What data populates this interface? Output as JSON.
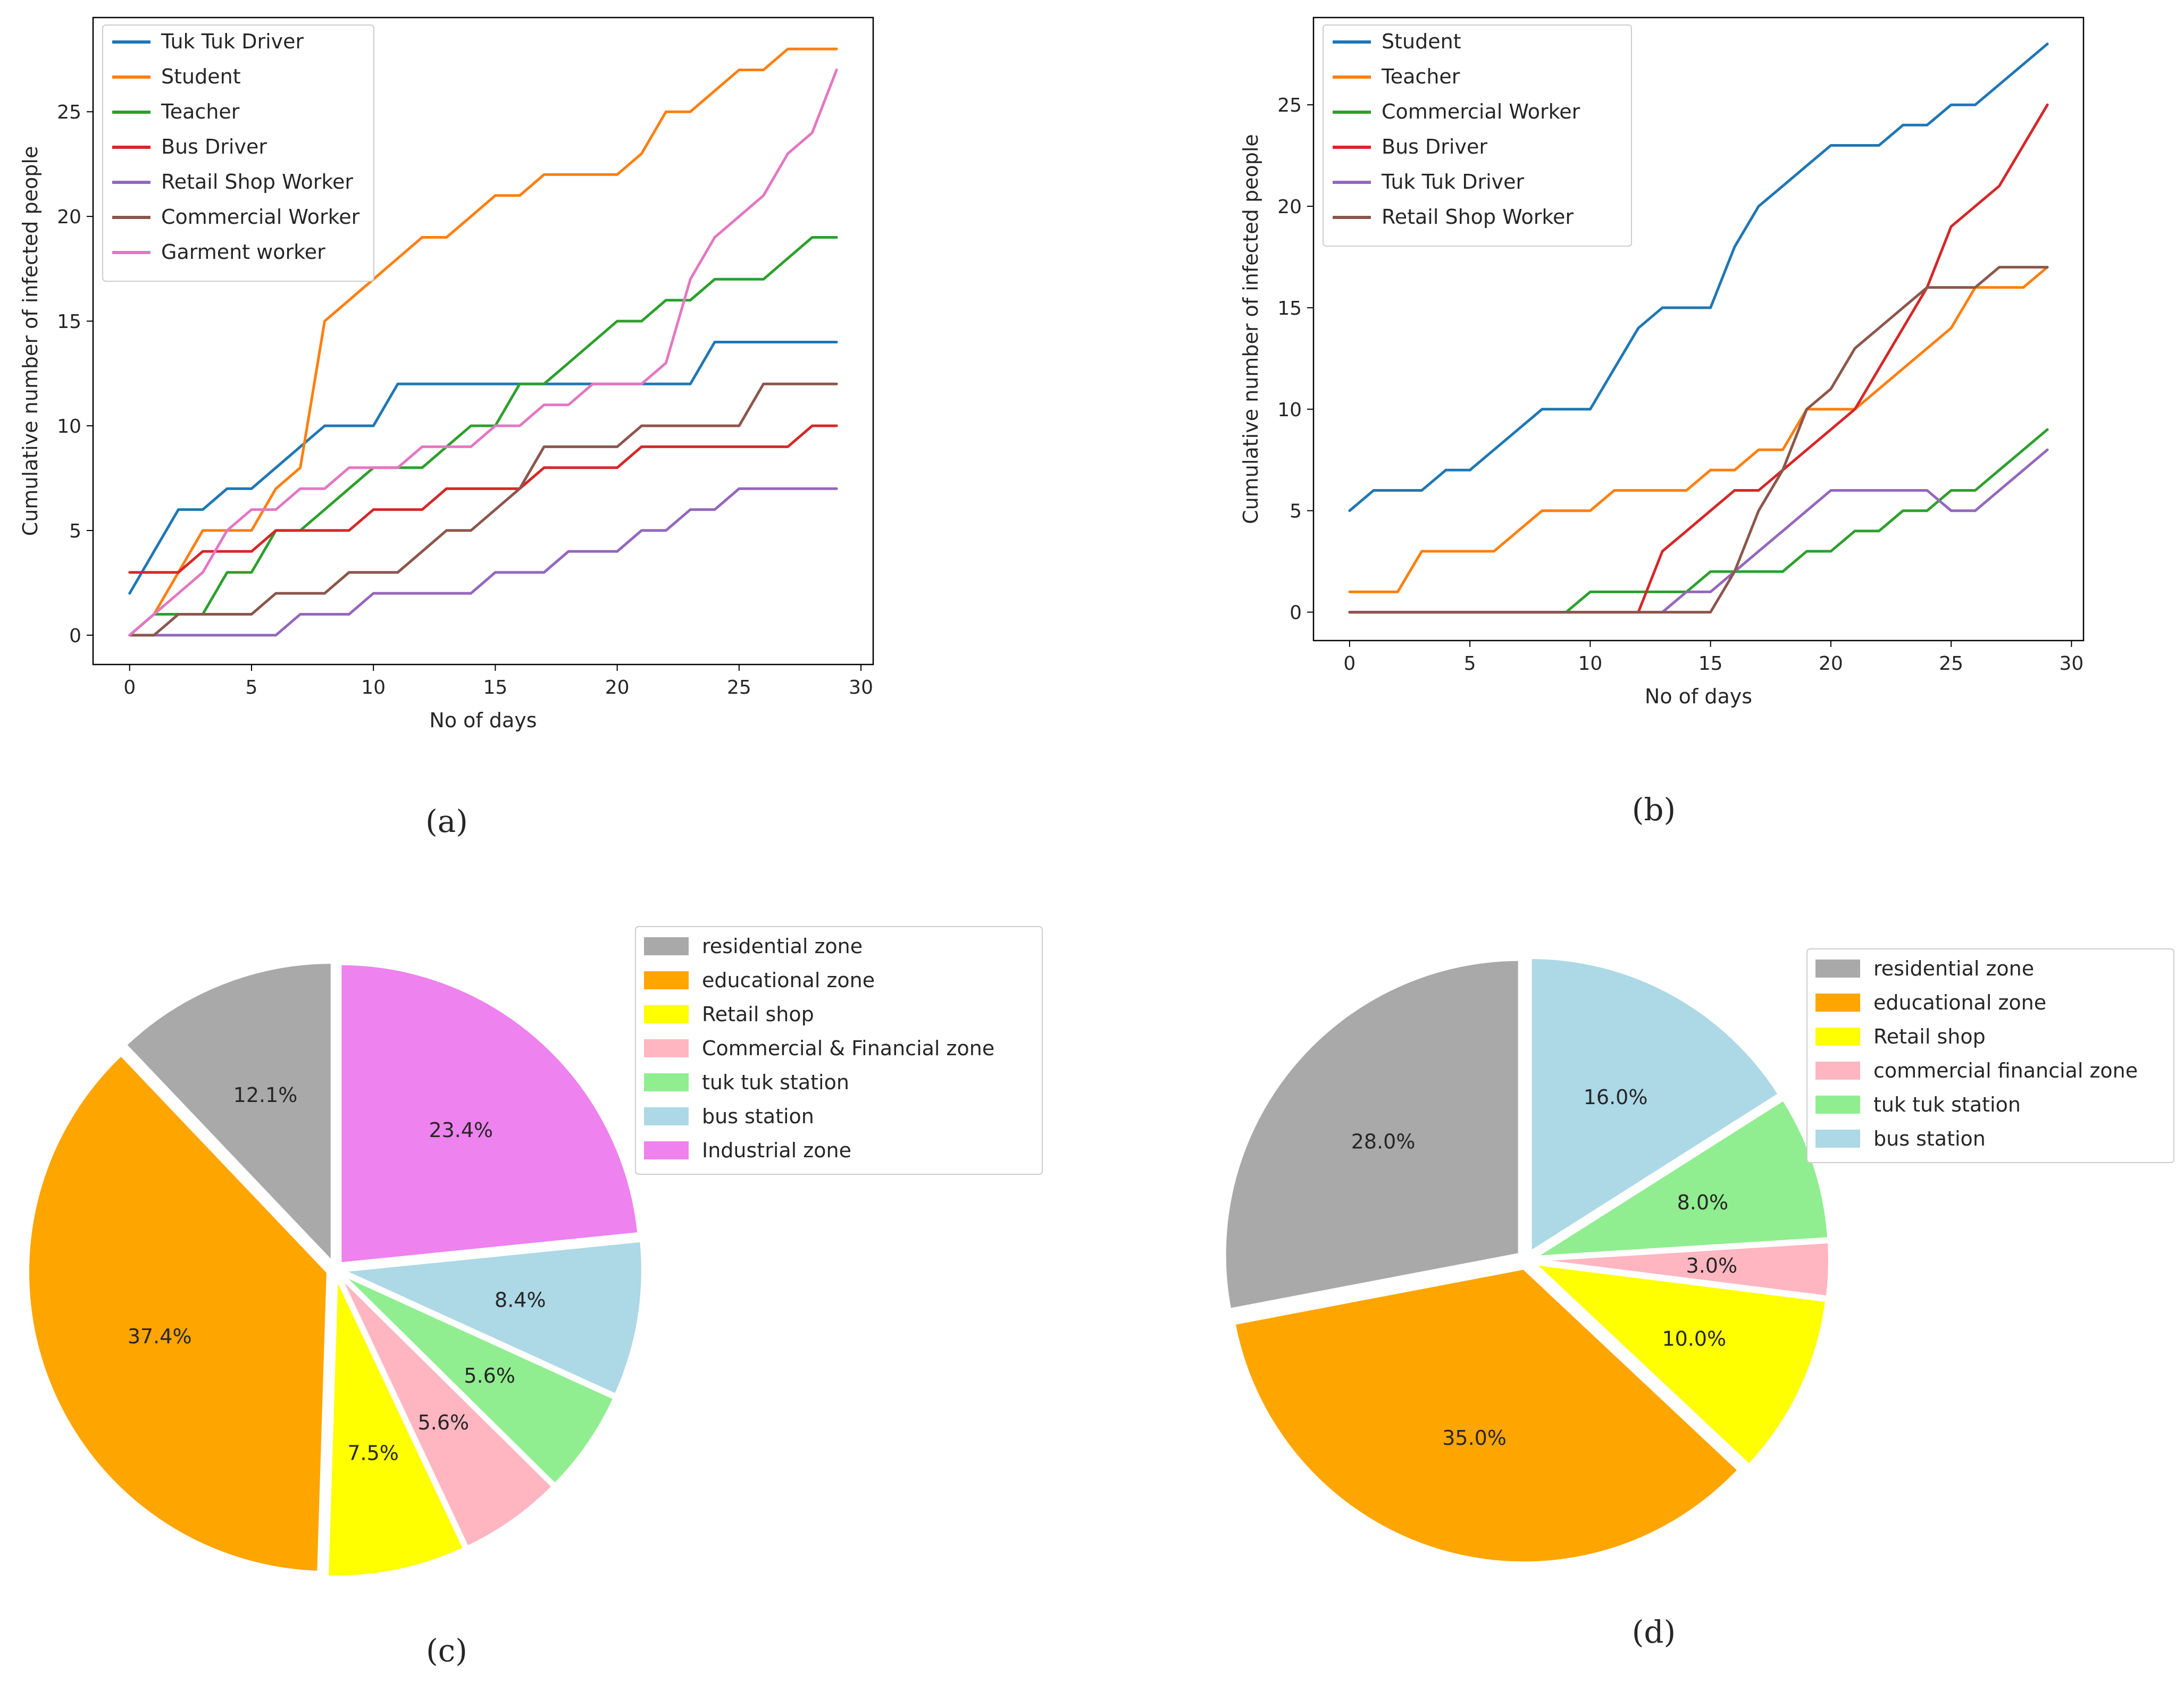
{
  "chart_data": [
    {
      "id": "a",
      "type": "line",
      "caption": "(a)",
      "caption_letter": "a",
      "xlabel": "No of days",
      "ylabel": "Cumulative number of infected people",
      "xlim": [
        -1.5,
        30.5
      ],
      "ylim": [
        -1.4,
        29.5
      ],
      "xticks": [
        0,
        5,
        10,
        15,
        20,
        25,
        30
      ],
      "yticks": [
        0,
        5,
        10,
        15,
        20,
        25
      ],
      "legend_position": "top-left",
      "x": [
        0,
        1,
        2,
        3,
        4,
        5,
        6,
        7,
        8,
        9,
        10,
        11,
        12,
        13,
        14,
        15,
        16,
        17,
        18,
        19,
        20,
        21,
        22,
        23,
        24,
        25,
        26,
        27,
        28,
        29
      ],
      "series": [
        {
          "name": "Tuk Tuk Driver",
          "color": "#1f77b4",
          "values": [
            2,
            4,
            6,
            6,
            7,
            7,
            8,
            9,
            10,
            10,
            10,
            12,
            12,
            12,
            12,
            12,
            12,
            12,
            12,
            12,
            12,
            12,
            12,
            12,
            14,
            14,
            14,
            14,
            14,
            14
          ]
        },
        {
          "name": "Student",
          "color": "#ff7f0e",
          "values": [
            0,
            1,
            3,
            5,
            5,
            5,
            7,
            8,
            15,
            16,
            17,
            18,
            19,
            19,
            20,
            21,
            21,
            22,
            22,
            22,
            22,
            23,
            25,
            25,
            26,
            27,
            27,
            28,
            28,
            28
          ]
        },
        {
          "name": "Teacher",
          "color": "#2ca02c",
          "values": [
            0,
            1,
            1,
            1,
            3,
            3,
            5,
            5,
            6,
            7,
            8,
            8,
            8,
            9,
            10,
            10,
            12,
            12,
            13,
            14,
            15,
            15,
            16,
            16,
            17,
            17,
            17,
            18,
            19,
            19
          ]
        },
        {
          "name": "Bus Driver",
          "color": "#d62728",
          "values": [
            3,
            3,
            3,
            4,
            4,
            4,
            5,
            5,
            5,
            5,
            6,
            6,
            6,
            7,
            7,
            7,
            7,
            8,
            8,
            8,
            8,
            9,
            9,
            9,
            9,
            9,
            9,
            9,
            10,
            10
          ]
        },
        {
          "name": "Retail Shop Worker",
          "color": "#9467bd",
          "values": [
            0,
            0,
            0,
            0,
            0,
            0,
            0,
            1,
            1,
            1,
            2,
            2,
            2,
            2,
            2,
            3,
            3,
            3,
            4,
            4,
            4,
            5,
            5,
            6,
            6,
            7,
            7,
            7,
            7,
            7
          ]
        },
        {
          "name": "Commercial Worker",
          "color": "#8c564b",
          "values": [
            0,
            0,
            1,
            1,
            1,
            1,
            2,
            2,
            2,
            3,
            3,
            3,
            4,
            5,
            5,
            6,
            7,
            9,
            9,
            9,
            9,
            10,
            10,
            10,
            10,
            10,
            12,
            12,
            12,
            12
          ]
        },
        {
          "name": "Garment worker",
          "color": "#e377c2",
          "values": [
            0,
            1,
            2,
            3,
            5,
            6,
            6,
            7,
            7,
            8,
            8,
            8,
            9,
            9,
            9,
            10,
            10,
            11,
            11,
            12,
            12,
            12,
            13,
            17,
            19,
            20,
            21,
            23,
            24,
            27
          ]
        }
      ]
    },
    {
      "id": "b",
      "type": "line",
      "caption": "(b)",
      "caption_letter": "b",
      "xlabel": "No of days",
      "ylabel": "Cumulative number of infected people",
      "xlim": [
        -1.5,
        30.5
      ],
      "ylim": [
        -1.4,
        29.3
      ],
      "xticks": [
        0,
        5,
        10,
        15,
        20,
        25,
        30
      ],
      "yticks": [
        0,
        5,
        10,
        15,
        20,
        25
      ],
      "legend_position": "top-left",
      "x": [
        0,
        1,
        2,
        3,
        4,
        5,
        6,
        7,
        8,
        9,
        10,
        11,
        12,
        13,
        14,
        15,
        16,
        17,
        18,
        19,
        20,
        21,
        22,
        23,
        24,
        25,
        26,
        27,
        28,
        29
      ],
      "series": [
        {
          "name": "Student",
          "color": "#1f77b4",
          "values": [
            5,
            6,
            6,
            6,
            7,
            7,
            8,
            9,
            10,
            10,
            10,
            12,
            14,
            15,
            15,
            15,
            18,
            20,
            21,
            22,
            23,
            23,
            23,
            24,
            24,
            25,
            25,
            26,
            27,
            28
          ]
        },
        {
          "name": "Teacher",
          "color": "#ff7f0e",
          "values": [
            1,
            1,
            1,
            3,
            3,
            3,
            3,
            4,
            5,
            5,
            5,
            6,
            6,
            6,
            6,
            7,
            7,
            8,
            8,
            10,
            10,
            10,
            11,
            12,
            13,
            14,
            16,
            16,
            16,
            17
          ]
        },
        {
          "name": "Commercial Worker",
          "color": "#2ca02c",
          "values": [
            0,
            0,
            0,
            0,
            0,
            0,
            0,
            0,
            0,
            0,
            1,
            1,
            1,
            1,
            1,
            2,
            2,
            2,
            2,
            3,
            3,
            4,
            4,
            5,
            5,
            6,
            6,
            7,
            8,
            9
          ]
        },
        {
          "name": "Bus Driver",
          "color": "#d62728",
          "values": [
            0,
            0,
            0,
            0,
            0,
            0,
            0,
            0,
            0,
            0,
            0,
            0,
            0,
            3,
            4,
            5,
            6,
            6,
            7,
            8,
            9,
            10,
            12,
            14,
            16,
            19,
            20,
            21,
            23,
            25
          ]
        },
        {
          "name": "Tuk Tuk Driver",
          "color": "#9467bd",
          "values": [
            0,
            0,
            0,
            0,
            0,
            0,
            0,
            0,
            0,
            0,
            0,
            0,
            0,
            0,
            1,
            1,
            2,
            3,
            4,
            5,
            6,
            6,
            6,
            6,
            6,
            5,
            5,
            6,
            7,
            8
          ]
        },
        {
          "name": "Retail Shop Worker",
          "color": "#8c564b",
          "values": [
            0,
            0,
            0,
            0,
            0,
            0,
            0,
            0,
            0,
            0,
            0,
            0,
            0,
            0,
            0,
            0,
            2,
            5,
            7,
            10,
            11,
            13,
            14,
            15,
            16,
            16,
            16,
            17,
            17,
            17
          ]
        }
      ]
    },
    {
      "id": "c",
      "type": "pie",
      "caption": "(c)",
      "caption_letter": "c",
      "legend_position": "top-right",
      "slices": [
        {
          "label": "residential zone",
          "value": 12.1,
          "text": "12.1%",
          "color": "#a9a9a9"
        },
        {
          "label": "educational zone",
          "value": 37.4,
          "text": "37.4%",
          "color": "#ffa500"
        },
        {
          "label": "Retail shop",
          "value": 7.5,
          "text": "7.5%",
          "color": "#ffff00"
        },
        {
          "label": "Commercial & Financial zone",
          "value": 5.6,
          "text": "5.6%",
          "color": "#ffb6c1"
        },
        {
          "label": "tuk tuk station",
          "value": 5.6,
          "text": "5.6%",
          "color": "#90ee90"
        },
        {
          "label": "bus station",
          "value": 8.4,
          "text": "8.4%",
          "color": "#add8e6"
        },
        {
          "label": "Industrial  zone",
          "value": 23.4,
          "text": "23.4%",
          "color": "#ee82ee"
        }
      ]
    },
    {
      "id": "d",
      "type": "pie",
      "caption": "(d)",
      "caption_letter": "d",
      "legend_position": "top-right",
      "slices": [
        {
          "label": "residential zone",
          "value": 28.0,
          "text": "28.0%",
          "color": "#a9a9a9"
        },
        {
          "label": "educational zone",
          "value": 35.0,
          "text": "35.0%",
          "color": "#ffa500"
        },
        {
          "label": "Retail shop",
          "value": 10.0,
          "text": "10.0%",
          "color": "#ffff00"
        },
        {
          "label": "commercial financial zone",
          "value": 3.0,
          "text": "3.0%",
          "color": "#ffb6c1"
        },
        {
          "label": "tuk tuk station",
          "value": 8.0,
          "text": "8.0%",
          "color": "#90ee90"
        },
        {
          "label": "bus station",
          "value": 16.0,
          "text": "16.0%",
          "color": "#add8e6"
        }
      ]
    }
  ]
}
